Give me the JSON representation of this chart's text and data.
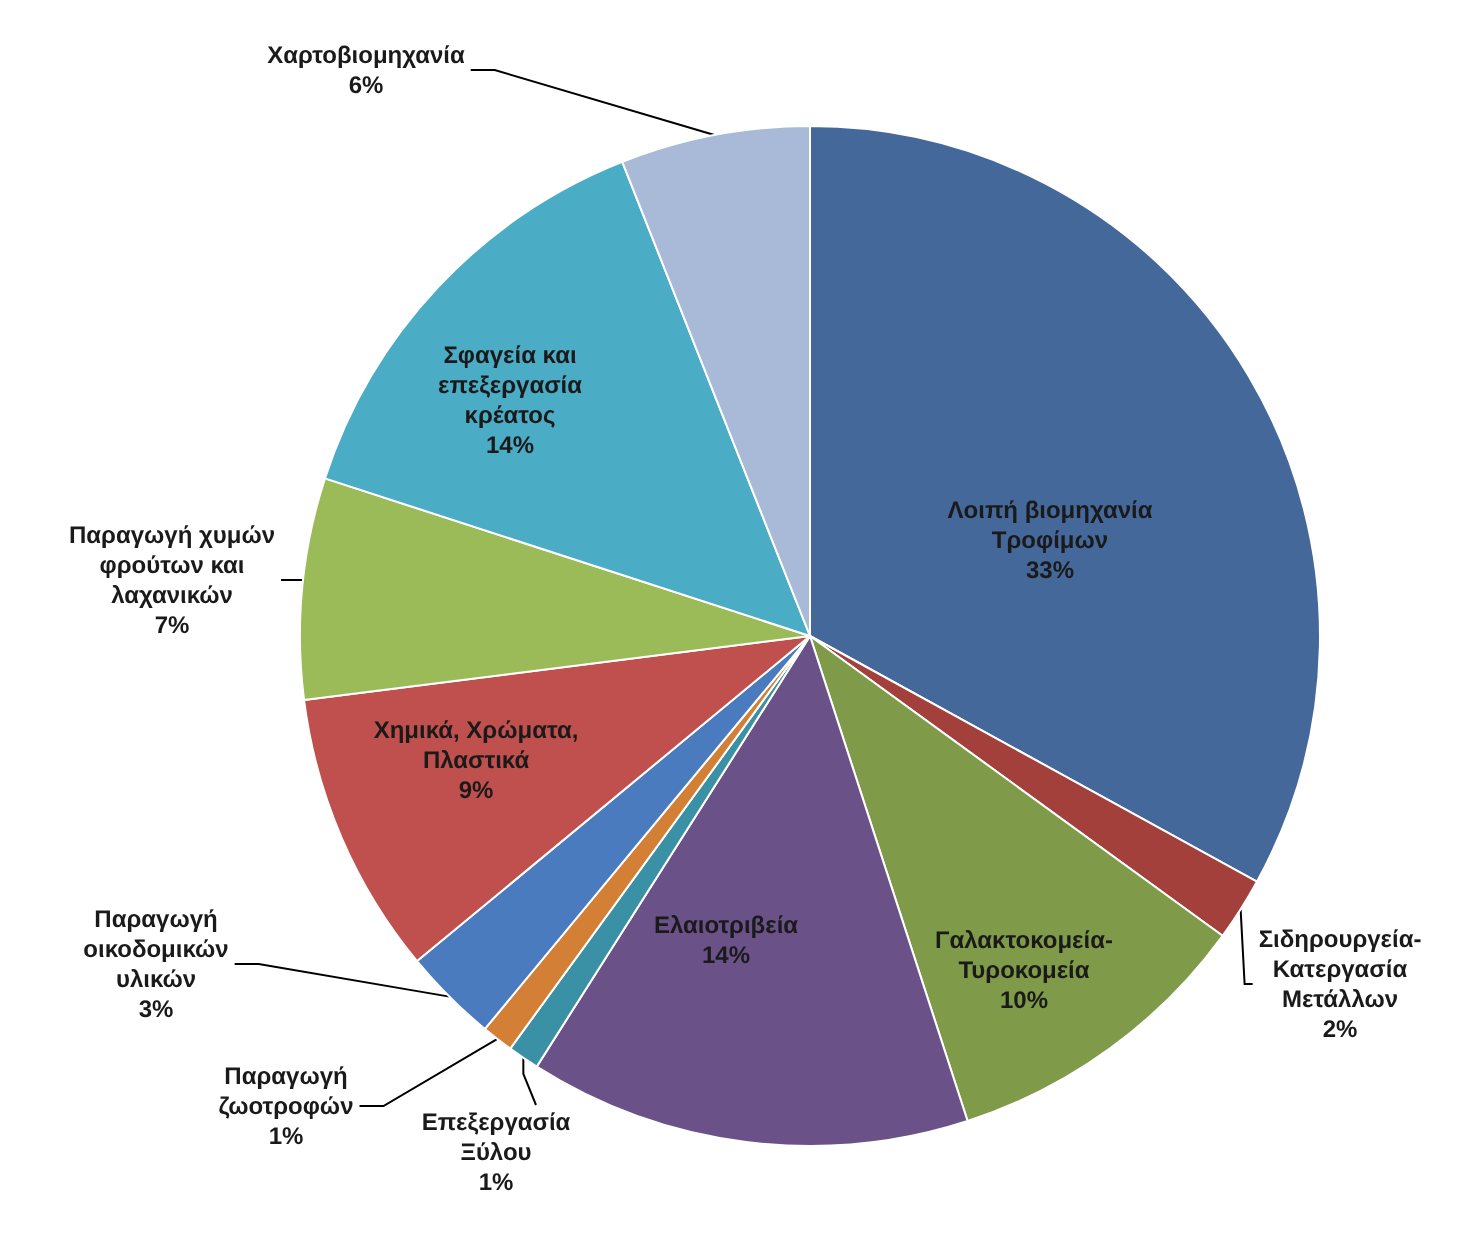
{
  "chart_data": {
    "type": "pie",
    "categories": [
      "Λοιπή βιομηχανία Τροφίμων",
      "Σιδηρουργεία-Κατεργασία Μετάλλων",
      "Γαλακτοκομεία-Τυροκομεία",
      "Ελαιοτριβεία",
      "Επεξεργασία Ξύλου",
      "Παραγωγή ζωοτροφών",
      "Παραγωγή οικοδομικών υλικών",
      "Χημικά, Χρώματα, Πλαστικά",
      "Παραγωγή χυμών φρούτων και λαχανικών",
      "Σφαγεία και επεξεργασία κρέατος",
      "Χαρτοβιομηχανία"
    ],
    "values": [
      33,
      2,
      10,
      14,
      1,
      1,
      3,
      9,
      7,
      14,
      6
    ],
    "colors": [
      "#44689a",
      "#a3403c",
      "#7f9a48",
      "#6a5288",
      "#3a91a6",
      "#d47f36",
      "#4a7bbf",
      "#c0504d",
      "#9bbb59",
      "#4bacc6",
      "#a9b9d8"
    ],
    "value_labels": [
      "33%",
      "2%",
      "10%",
      "14%",
      "1%",
      "1%",
      "3%",
      "9%",
      "7%",
      "14%",
      "6%"
    ],
    "legend": false
  }
}
